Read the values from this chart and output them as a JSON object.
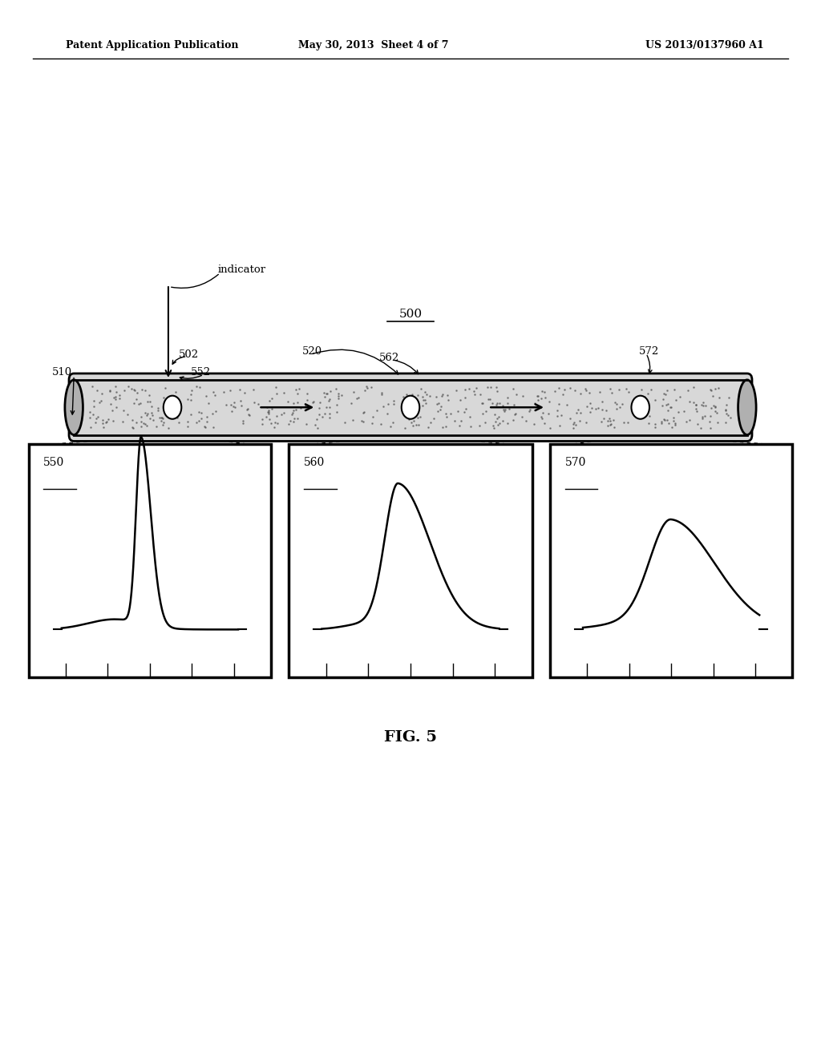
{
  "bg_color": "#ffffff",
  "header_left": "Patent Application Publication",
  "header_mid": "May 30, 2013  Sheet 4 of 7",
  "header_right": "US 2013/0137960 A1",
  "fig_label": "FIG. 5",
  "label_500": "500",
  "label_510": "510",
  "label_502": "502",
  "label_552": "552",
  "label_520": "520",
  "label_562": "562",
  "label_572": "572",
  "label_indicator": "indicator",
  "label_550": "550",
  "label_560": "560",
  "label_570": "570"
}
